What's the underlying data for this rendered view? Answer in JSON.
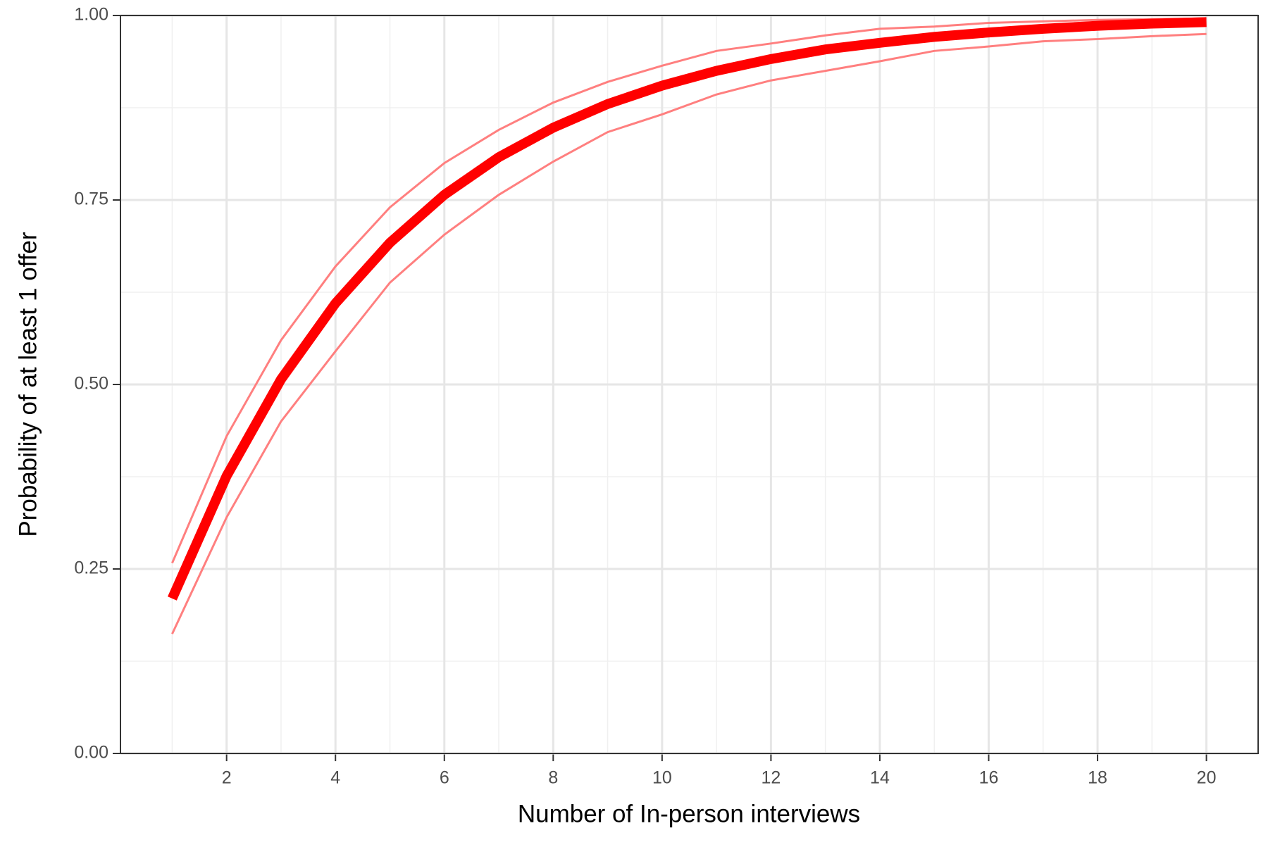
{
  "chart_data": {
    "type": "line",
    "x_label": "Number of In-person interviews",
    "y_label": "Probability of at least 1 offer",
    "x": [
      1,
      2,
      3,
      4,
      5,
      6,
      7,
      8,
      9,
      10,
      11,
      12,
      13,
      14,
      15,
      16,
      17,
      18,
      19,
      20
    ],
    "series": [
      {
        "color": "#ff7f7f",
        "width": 3,
        "values": [
          0.258,
          0.43,
          0.56,
          0.66,
          0.74,
          0.8,
          0.845,
          0.882,
          0.91,
          0.932,
          0.952,
          0.962,
          0.973,
          0.982,
          0.985,
          0.99,
          0.992,
          0.994,
          0.995,
          0.996
        ]
      },
      {
        "color": "#ff7f7f",
        "width": 3,
        "values": [
          0.162,
          0.32,
          0.45,
          0.545,
          0.638,
          0.703,
          0.757,
          0.802,
          0.842,
          0.866,
          0.893,
          0.912,
          0.925,
          0.938,
          0.952,
          0.958,
          0.965,
          0.968,
          0.972,
          0.975
        ]
      },
      {
        "color": "#ff0000",
        "width": 14,
        "values": [
          0.21,
          0.376,
          0.507,
          0.61,
          0.692,
          0.757,
          0.808,
          0.848,
          0.88,
          0.905,
          0.925,
          0.941,
          0.954,
          0.963,
          0.971,
          0.977,
          0.982,
          0.986,
          0.989,
          0.991
        ]
      }
    ],
    "xlim": [
      0.05,
      20.95
    ],
    "ylim": [
      0,
      1
    ],
    "xticks": [
      2,
      4,
      6,
      8,
      10,
      12,
      14,
      16,
      18,
      20
    ],
    "yticks": [
      {
        "value": 0,
        "label": "0.00"
      },
      0.25,
      {
        "value": 0.5,
        "label": "0.50"
      },
      0.75,
      {
        "value": 1,
        "label": "1.00"
      }
    ],
    "xminorticks": [
      1,
      3,
      5,
      7,
      9,
      11,
      13,
      15,
      17,
      19
    ],
    "yminorticks": [
      0.125,
      0.375,
      0.625,
      0.875
    ],
    "grid": true
  }
}
